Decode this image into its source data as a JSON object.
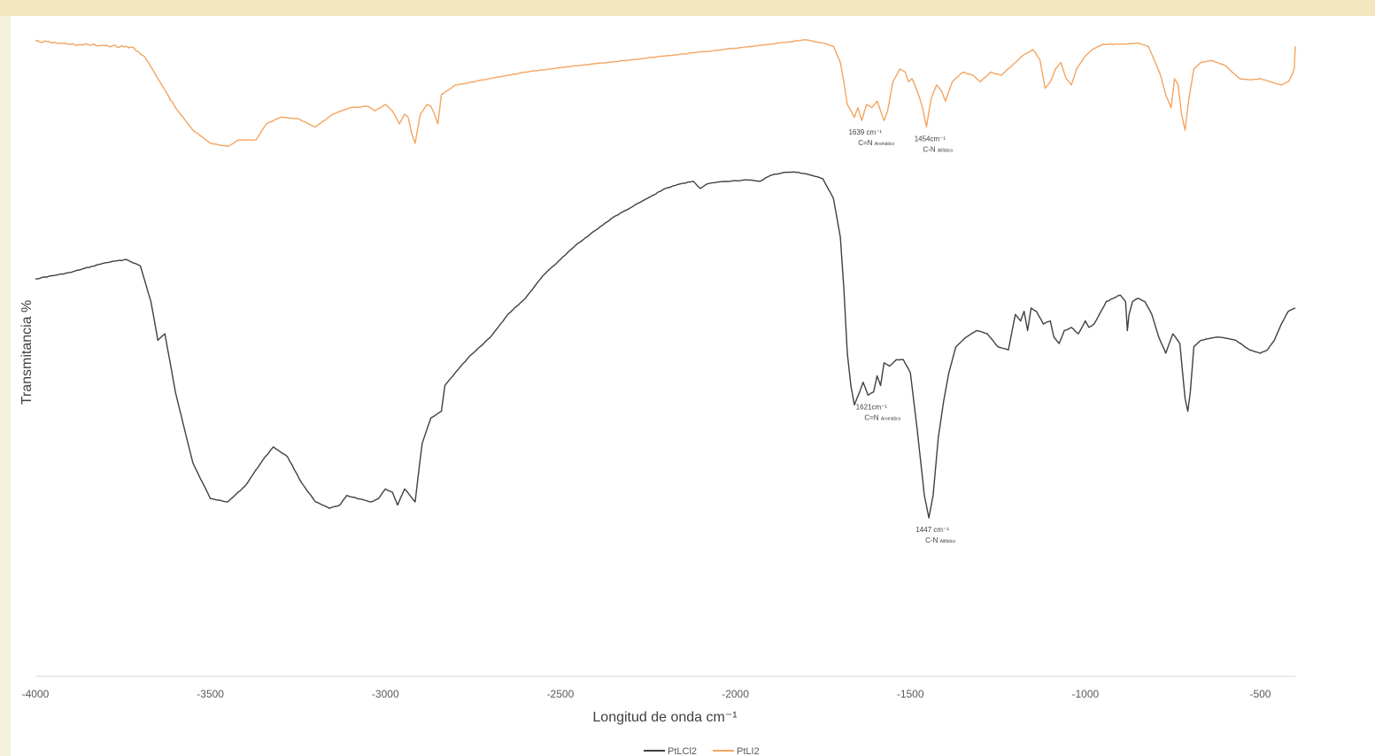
{
  "chart_data": {
    "type": "line",
    "xlabel": "Longitud de onda cm⁻¹",
    "ylabel": "Transmitancia %",
    "xlim": [
      -4000,
      -400
    ],
    "xticks": [
      -4000,
      -3500,
      -3000,
      -2500,
      -2000,
      -1500,
      -1000,
      -500
    ],
    "xtick_labels": [
      "-4000",
      "-3500",
      "-3000",
      "-2500",
      "-2000",
      "-1500",
      "-1000",
      "-500"
    ],
    "ylim": [
      0,
      100
    ],
    "grid": false,
    "legend": "bottom",
    "series": [
      {
        "name": "PtLCl2",
        "color": "#404040",
        "points": [
          [
            -4000,
            61.5
          ],
          [
            -3900,
            62.5
          ],
          [
            -3800,
            64.0
          ],
          [
            -3740,
            64.5
          ],
          [
            -3700,
            63.5
          ],
          [
            -3670,
            58.0
          ],
          [
            -3650,
            52.0
          ],
          [
            -3630,
            53.0
          ],
          [
            -3600,
            44.0
          ],
          [
            -3550,
            33.0
          ],
          [
            -3500,
            27.5
          ],
          [
            -3450,
            27.0
          ],
          [
            -3400,
            29.5
          ],
          [
            -3350,
            33.5
          ],
          [
            -3320,
            35.5
          ],
          [
            -3280,
            34.0
          ],
          [
            -3240,
            30.0
          ],
          [
            -3200,
            27.0
          ],
          [
            -3160,
            26.0
          ],
          [
            -3130,
            26.5
          ],
          [
            -3110,
            28.0
          ],
          [
            -3080,
            27.5
          ],
          [
            -3040,
            27.0
          ],
          [
            -3020,
            27.5
          ],
          [
            -3000,
            29.0
          ],
          [
            -2980,
            28.5
          ],
          [
            -2965,
            26.5
          ],
          [
            -2945,
            29.0
          ],
          [
            -2930,
            28.0
          ],
          [
            -2915,
            27.0
          ],
          [
            -2895,
            36.0
          ],
          [
            -2870,
            40.0
          ],
          [
            -2840,
            41.0
          ],
          [
            -2830,
            45.0
          ],
          [
            -2800,
            47.0
          ],
          [
            -2760,
            49.5
          ],
          [
            -2700,
            52.5
          ],
          [
            -2650,
            56.0
          ],
          [
            -2600,
            58.5
          ],
          [
            -2550,
            62.0
          ],
          [
            -2500,
            64.5
          ],
          [
            -2450,
            67.0
          ],
          [
            -2400,
            69.0
          ],
          [
            -2350,
            71.0
          ],
          [
            -2300,
            72.5
          ],
          [
            -2250,
            74.0
          ],
          [
            -2200,
            75.5
          ],
          [
            -2150,
            76.3
          ],
          [
            -2120,
            76.6
          ],
          [
            -2100,
            75.5
          ],
          [
            -2080,
            76.2
          ],
          [
            -2050,
            76.5
          ],
          [
            -2000,
            76.7
          ],
          [
            -1960,
            76.8
          ],
          [
            -1930,
            76.6
          ],
          [
            -1900,
            77.5
          ],
          [
            -1860,
            78.0
          ],
          [
            -1820,
            78.0
          ],
          [
            -1780,
            77.5
          ],
          [
            -1750,
            77.0
          ],
          [
            -1720,
            74.0
          ],
          [
            -1700,
            68.0
          ],
          [
            -1690,
            60.0
          ],
          [
            -1680,
            50.0
          ],
          [
            -1670,
            45.0
          ],
          [
            -1660,
            42.0
          ],
          [
            -1645,
            44.0
          ],
          [
            -1635,
            45.5
          ],
          [
            -1621,
            43.5
          ],
          [
            -1605,
            44.0
          ],
          [
            -1595,
            46.5
          ],
          [
            -1585,
            45.0
          ],
          [
            -1575,
            48.5
          ],
          [
            -1560,
            48.0
          ],
          [
            -1540,
            49.0
          ],
          [
            -1520,
            49.0
          ],
          [
            -1500,
            47.0
          ],
          [
            -1480,
            38.0
          ],
          [
            -1460,
            28.0
          ],
          [
            -1447,
            24.5
          ],
          [
            -1435,
            28.0
          ],
          [
            -1420,
            37.0
          ],
          [
            -1405,
            42.5
          ],
          [
            -1390,
            47.0
          ],
          [
            -1370,
            51.0
          ],
          [
            -1340,
            52.5
          ],
          [
            -1310,
            53.5
          ],
          [
            -1280,
            53.0
          ],
          [
            -1250,
            51.0
          ],
          [
            -1220,
            50.5
          ],
          [
            -1200,
            56.0
          ],
          [
            -1185,
            55.0
          ],
          [
            -1175,
            56.5
          ],
          [
            -1165,
            53.5
          ],
          [
            -1155,
            57.0
          ],
          [
            -1140,
            56.5
          ],
          [
            -1120,
            54.5
          ],
          [
            -1100,
            55.0
          ],
          [
            -1090,
            52.5
          ],
          [
            -1075,
            51.5
          ],
          [
            -1060,
            53.5
          ],
          [
            -1040,
            54.0
          ],
          [
            -1020,
            53.0
          ],
          [
            -1000,
            55.0
          ],
          [
            -990,
            54.0
          ],
          [
            -975,
            54.5
          ],
          [
            -960,
            56.0
          ],
          [
            -940,
            58.0
          ],
          [
            -920,
            58.5
          ],
          [
            -900,
            59.0
          ],
          [
            -885,
            58.0
          ],
          [
            -880,
            53.5
          ],
          [
            -875,
            56.0
          ],
          [
            -865,
            58.0
          ],
          [
            -850,
            58.5
          ],
          [
            -830,
            58.0
          ],
          [
            -810,
            56.0
          ],
          [
            -790,
            52.5
          ],
          [
            -770,
            50.0
          ],
          [
            -750,
            53.0
          ],
          [
            -730,
            51.5
          ],
          [
            -715,
            43.0
          ],
          [
            -707,
            41.0
          ],
          [
            -700,
            44.0
          ],
          [
            -690,
            51.0
          ],
          [
            -670,
            52.0
          ],
          [
            -620,
            52.5
          ],
          [
            -570,
            52.0
          ],
          [
            -530,
            50.5
          ],
          [
            -500,
            50.0
          ],
          [
            -480,
            50.5
          ],
          [
            -460,
            52.0
          ],
          [
            -440,
            54.5
          ],
          [
            -420,
            56.5
          ],
          [
            -400,
            57.0
          ]
        ]
      },
      {
        "name": "PtLI2",
        "color": "#f4a460",
        "points": [
          [
            -4000,
            98.3
          ],
          [
            -3900,
            97.8
          ],
          [
            -3800,
            97.6
          ],
          [
            -3720,
            97.3
          ],
          [
            -3690,
            96.0
          ],
          [
            -3650,
            92.5
          ],
          [
            -3600,
            88.0
          ],
          [
            -3550,
            84.5
          ],
          [
            -3500,
            82.5
          ],
          [
            -3450,
            82.0
          ],
          [
            -3420,
            83.0
          ],
          [
            -3370,
            83.0
          ],
          [
            -3340,
            85.5
          ],
          [
            -3300,
            86.5
          ],
          [
            -3250,
            86.3
          ],
          [
            -3200,
            85.0
          ],
          [
            -3150,
            87.0
          ],
          [
            -3100,
            88.0
          ],
          [
            -3050,
            88.2
          ],
          [
            -3030,
            87.5
          ],
          [
            -3000,
            88.5
          ],
          [
            -2980,
            87.5
          ],
          [
            -2960,
            85.5
          ],
          [
            -2945,
            87.0
          ],
          [
            -2935,
            86.5
          ],
          [
            -2925,
            84.0
          ],
          [
            -2915,
            82.5
          ],
          [
            -2900,
            87.0
          ],
          [
            -2880,
            88.5
          ],
          [
            -2870,
            88.2
          ],
          [
            -2860,
            87.0
          ],
          [
            -2850,
            85.5
          ],
          [
            -2840,
            90.0
          ],
          [
            -2800,
            91.5
          ],
          [
            -2700,
            92.5
          ],
          [
            -2600,
            93.5
          ],
          [
            -2500,
            94.2
          ],
          [
            -2400,
            94.8
          ],
          [
            -2300,
            95.4
          ],
          [
            -2200,
            96.0
          ],
          [
            -2100,
            96.6
          ],
          [
            -2000,
            97.2
          ],
          [
            -1900,
            97.8
          ],
          [
            -1800,
            98.5
          ],
          [
            -1750,
            98.0
          ],
          [
            -1720,
            97.5
          ],
          [
            -1700,
            95.0
          ],
          [
            -1690,
            92.0
          ],
          [
            -1680,
            88.5
          ],
          [
            -1670,
            87.5
          ],
          [
            -1660,
            86.5
          ],
          [
            -1650,
            88.0
          ],
          [
            -1639,
            86.0
          ],
          [
            -1625,
            88.5
          ],
          [
            -1610,
            88.0
          ],
          [
            -1595,
            89.0
          ],
          [
            -1575,
            86.0
          ],
          [
            -1565,
            87.5
          ],
          [
            -1550,
            92.0
          ],
          [
            -1530,
            94.0
          ],
          [
            -1515,
            93.5
          ],
          [
            -1505,
            92.0
          ],
          [
            -1495,
            92.5
          ],
          [
            -1480,
            90.5
          ],
          [
            -1465,
            88.0
          ],
          [
            -1454,
            85.0
          ],
          [
            -1440,
            89.5
          ],
          [
            -1425,
            91.5
          ],
          [
            -1410,
            90.5
          ],
          [
            -1400,
            89.0
          ],
          [
            -1380,
            92.0
          ],
          [
            -1350,
            93.5
          ],
          [
            -1320,
            93.0
          ],
          [
            -1300,
            92.0
          ],
          [
            -1270,
            93.5
          ],
          [
            -1240,
            93.0
          ],
          [
            -1210,
            94.5
          ],
          [
            -1180,
            96.0
          ],
          [
            -1150,
            97.0
          ],
          [
            -1130,
            95.5
          ],
          [
            -1115,
            91.0
          ],
          [
            -1100,
            92.0
          ],
          [
            -1085,
            94.0
          ],
          [
            -1070,
            95.0
          ],
          [
            -1055,
            92.5
          ],
          [
            -1040,
            91.5
          ],
          [
            -1025,
            94.0
          ],
          [
            -1000,
            96.0
          ],
          [
            -980,
            97.0
          ],
          [
            -950,
            97.8
          ],
          [
            -900,
            97.8
          ],
          [
            -850,
            98.0
          ],
          [
            -820,
            97.5
          ],
          [
            -800,
            95.0
          ],
          [
            -785,
            93.0
          ],
          [
            -770,
            90.0
          ],
          [
            -755,
            88.0
          ],
          [
            -745,
            92.5
          ],
          [
            -735,
            91.5
          ],
          [
            -725,
            87.0
          ],
          [
            -715,
            84.5
          ],
          [
            -705,
            89.0
          ],
          [
            -690,
            94.0
          ],
          [
            -670,
            95.0
          ],
          [
            -640,
            95.3
          ],
          [
            -600,
            94.5
          ],
          [
            -560,
            92.5
          ],
          [
            -530,
            92.3
          ],
          [
            -500,
            92.5
          ],
          [
            -470,
            92.0
          ],
          [
            -440,
            91.5
          ],
          [
            -420,
            92.0
          ],
          [
            -410,
            93.0
          ],
          [
            -403,
            94.0
          ],
          [
            -401,
            96.5
          ],
          [
            -400,
            97.5
          ]
        ]
      }
    ],
    "annotations": [
      {
        "series": "PtLI2",
        "x": -1639,
        "y": 86.0,
        "line1": "1639 cm⁻¹",
        "line2_main": "C=N",
        "line2_small": "Aromático"
      },
      {
        "series": "PtLI2",
        "x": -1454,
        "y": 85.0,
        "line1": "1454cm⁻¹",
        "line2_main": "C-N",
        "line2_small": "Alifático"
      },
      {
        "series": "PtLCl2",
        "x": -1621,
        "y": 43.5,
        "line1": "1621cm⁻¹",
        "line2_main": "C=N",
        "line2_small": "Aromático"
      },
      {
        "series": "PtLCl2",
        "x": -1447,
        "y": 24.5,
        "line1": "1447 cm⁻¹",
        "line2_main": "C-N",
        "line2_small": "Alifático"
      }
    ]
  }
}
